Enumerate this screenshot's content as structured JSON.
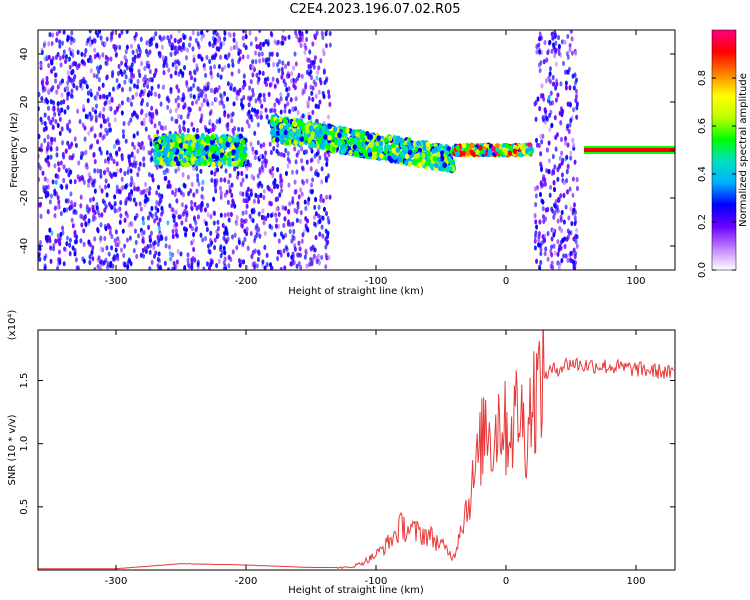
{
  "title": "C2E4.2023.196.07.02.R05",
  "colors": {
    "snr_line": "#e83a3a",
    "frame": "#000000",
    "points_purple": "#6a00ff",
    "colorbar_stops": [
      "#ffffff",
      "#c080ff",
      "#6a00ff",
      "#0000ff",
      "#00b0ff",
      "#00e0c0",
      "#00ff00",
      "#c0ff00",
      "#ffff00",
      "#ff8000",
      "#ff0000",
      "#ff0080"
    ]
  },
  "chart_data": [
    {
      "type": "heatmap",
      "title": "",
      "xlabel": "Height of straight line (km)",
      "ylabel": "Frequency (Hz)",
      "xlim": [
        -360,
        130
      ],
      "ylim": [
        -50,
        50
      ],
      "xticks": [
        -300,
        -200,
        -100,
        0,
        100
      ],
      "yticks": [
        -40,
        -20,
        0,
        20,
        40
      ],
      "colorbar": {
        "label": "Normalized spectral amplitude",
        "range": [
          0.0,
          1.0
        ],
        "ticks": [
          "0.0",
          "0.2",
          "0.4",
          "0.6",
          "0.8"
        ]
      },
      "features": [
        {
          "region": "noise",
          "x_range": [
            -360,
            -270
          ],
          "y_range": [
            -50,
            50
          ]
        },
        {
          "region": "noise",
          "x_range": [
            -270,
            -135
          ],
          "y_range": [
            -50,
            50
          ]
        },
        {
          "region": "signal",
          "x_range": [
            -270,
            -200
          ],
          "center_freq": 0,
          "spread": 6
        },
        {
          "region": "signal",
          "x_range": [
            -180,
            -40
          ],
          "center_freq_start": 9,
          "center_freq_end": -4
        },
        {
          "region": "signal",
          "x_range": [
            -40,
            20
          ],
          "center_freq": 0
        },
        {
          "region": "noise",
          "x_range": [
            22,
            55
          ],
          "y_range": [
            -50,
            50
          ]
        },
        {
          "region": "tone",
          "x_range": [
            60,
            130
          ],
          "center_freq": 0
        }
      ]
    },
    {
      "type": "line",
      "title": "",
      "xlabel": "Height of straight line (km)",
      "ylabel": "SNR (10 * v/v)",
      "y_multiplier": "(x10⁴)",
      "xlim": [
        -360,
        130
      ],
      "ylim": [
        0,
        1.9
      ],
      "xticks": [
        -300,
        -200,
        -100,
        0,
        100
      ],
      "yticks": [
        "0.5",
        "1.0",
        "1.5"
      ],
      "series": [
        {
          "x": [
            -360,
            -300,
            -250,
            -200,
            -150,
            -120,
            -110,
            -100,
            -90,
            -80,
            -70,
            -60,
            -50,
            -40,
            -35,
            -30,
            -25,
            -20,
            -15,
            -10,
            -5,
            0,
            5,
            10,
            15,
            20,
            25,
            30,
            40,
            50,
            60,
            70,
            80,
            90,
            100,
            110,
            120,
            130
          ],
          "y": [
            0.01,
            0.01,
            0.05,
            0.04,
            0.02,
            0.02,
            0.06,
            0.12,
            0.22,
            0.35,
            0.3,
            0.28,
            0.2,
            0.1,
            0.35,
            0.5,
            0.7,
            0.95,
            1.2,
            1.0,
            1.25,
            1.1,
            1.15,
            1.3,
            1.05,
            1.35,
            1.45,
            1.55,
            1.6,
            1.64,
            1.62,
            1.62,
            1.61,
            1.6,
            1.59,
            1.58,
            1.57,
            1.55
          ]
        }
      ]
    }
  ]
}
